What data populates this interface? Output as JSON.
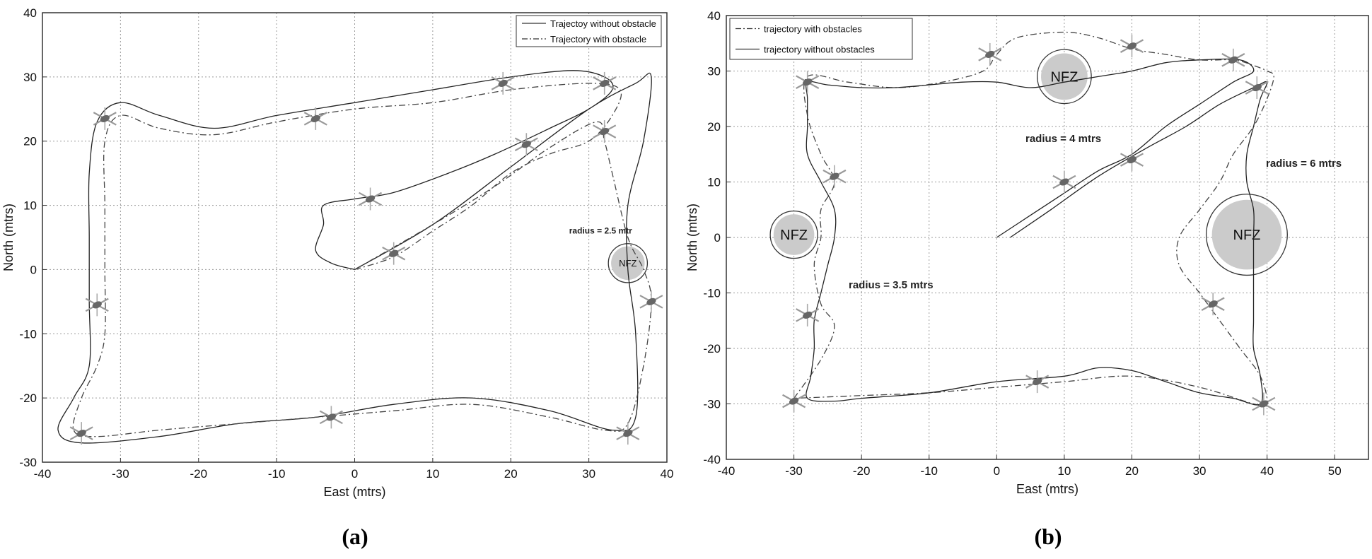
{
  "chart_data": [
    {
      "type": "line",
      "panel_label": "(a)",
      "xlabel": "East (mtrs)",
      "ylabel": "North (mtrs)",
      "xlim": [
        -40,
        40
      ],
      "ylim": [
        -30,
        40
      ],
      "xticks": [
        -40,
        -30,
        -20,
        -10,
        0,
        10,
        20,
        30,
        40
      ],
      "yticks": [
        -30,
        -20,
        -10,
        0,
        10,
        20,
        30,
        40
      ],
      "grid": true,
      "legend_position": "top-right",
      "series": [
        {
          "name": "Trajectoy without obstacle",
          "style": "solid",
          "points": [
            [
              0,
              0
            ],
            [
              -3,
              1
            ],
            [
              -5,
              3
            ],
            [
              -4,
              7
            ],
            [
              -4,
              10
            ],
            [
              0,
              11
            ],
            [
              5,
              12
            ],
            [
              12,
              15
            ],
            [
              18,
              18
            ],
            [
              25,
              22
            ],
            [
              30,
              25
            ],
            [
              33,
              28
            ],
            [
              32,
              30
            ],
            [
              28,
              31
            ],
            [
              20,
              30
            ],
            [
              10,
              28
            ],
            [
              0,
              26
            ],
            [
              -10,
              24
            ],
            [
              -18,
              22
            ],
            [
              -25,
              24
            ],
            [
              -30,
              26
            ],
            [
              -33,
              23
            ],
            [
              -34,
              15
            ],
            [
              -34,
              5
            ],
            [
              -34,
              -5
            ],
            [
              -34,
              -15
            ],
            [
              -36,
              -20
            ],
            [
              -38,
              -25
            ],
            [
              -35,
              -27
            ],
            [
              -25,
              -26
            ],
            [
              -15,
              -24
            ],
            [
              -5,
              -23
            ],
            [
              5,
              -21
            ],
            [
              15,
              -20
            ],
            [
              25,
              -22
            ],
            [
              33,
              -25
            ],
            [
              36,
              -23
            ],
            [
              36,
              -10
            ],
            [
              35,
              0
            ],
            [
              35,
              10
            ],
            [
              37,
              20
            ],
            [
              38,
              30
            ],
            [
              36,
              29
            ],
            [
              30,
              25
            ],
            [
              20,
              16
            ],
            [
              10,
              7
            ],
            [
              0,
              0
            ]
          ]
        },
        {
          "name": "Trajectory with obstacle",
          "style": "dashdot",
          "points": [
            [
              0,
              0
            ],
            [
              5,
              2
            ],
            [
              10,
              6
            ],
            [
              15,
              10
            ],
            [
              20,
              15
            ],
            [
              25,
              18
            ],
            [
              30,
              20
            ],
            [
              33,
              24
            ],
            [
              34,
              28
            ],
            [
              30,
              29
            ],
            [
              20,
              28
            ],
            [
              10,
              26
            ],
            [
              0,
              25
            ],
            [
              -10,
              23
            ],
            [
              -18,
              21
            ],
            [
              -25,
              22
            ],
            [
              -30,
              24
            ],
            [
              -32,
              20
            ],
            [
              -32,
              10
            ],
            [
              -32,
              0
            ],
            [
              -32,
              -10
            ],
            [
              -33,
              -15
            ],
            [
              -35,
              -20
            ],
            [
              -36,
              -25
            ],
            [
              -33,
              -26
            ],
            [
              -25,
              -25
            ],
            [
              -15,
              -24
            ],
            [
              -5,
              -23
            ],
            [
              5,
              -22
            ],
            [
              15,
              -21
            ],
            [
              25,
              -23
            ],
            [
              32,
              -25
            ],
            [
              35,
              -24
            ],
            [
              37,
              -15
            ],
            [
              38,
              -5
            ],
            [
              37,
              0
            ],
            [
              35,
              5
            ],
            [
              33,
              15
            ],
            [
              32,
              20
            ],
            [
              31,
              23
            ],
            [
              25,
              19
            ],
            [
              18,
              13
            ],
            [
              10,
              7
            ],
            [
              0,
              0
            ]
          ]
        }
      ],
      "obstacles": [
        {
          "label": "NFZ",
          "center": [
            35,
            1
          ],
          "radius": 2.5,
          "annotation": "radius = 2.5 mtr"
        }
      ],
      "helicopter_markers": [
        [
          -32,
          23.5
        ],
        [
          -5,
          23.5
        ],
        [
          19,
          29
        ],
        [
          32,
          29
        ],
        [
          22,
          19.5
        ],
        [
          32,
          21.5
        ],
        [
          2,
          11
        ],
        [
          5,
          2.5
        ],
        [
          -33,
          -5.5
        ],
        [
          38,
          -5
        ],
        [
          -3,
          -23
        ],
        [
          -35,
          -25.5
        ],
        [
          35,
          -25.5
        ]
      ]
    },
    {
      "type": "line",
      "panel_label": "(b)",
      "xlabel": "East (mtrs)",
      "ylabel": "North (mtrs)",
      "xlim": [
        -40,
        55
      ],
      "ylim": [
        -40,
        40
      ],
      "xticks": [
        -40,
        -30,
        -20,
        -10,
        0,
        10,
        20,
        30,
        40,
        50
      ],
      "yticks": [
        -40,
        -30,
        -20,
        -10,
        0,
        10,
        20,
        30,
        40
      ],
      "grid": true,
      "legend_position": "top-left",
      "series": [
        {
          "name": "trajectory with obstacles",
          "style": "dashdot",
          "points": [
            [
              -30,
              -29
            ],
            [
              -26,
              -22
            ],
            [
              -24,
              -16
            ],
            [
              -26,
              -12
            ],
            [
              -27,
              -5
            ],
            [
              -26,
              0
            ],
            [
              -26,
              5
            ],
            [
              -24,
              10
            ],
            [
              -26,
              15
            ],
            [
              -28,
              22
            ],
            [
              -28,
              29
            ],
            [
              -22,
              28
            ],
            [
              -15,
              27
            ],
            [
              -8,
              28
            ],
            [
              -2,
              30
            ],
            [
              0,
              33
            ],
            [
              3,
              36
            ],
            [
              10,
              37
            ],
            [
              15,
              36
            ],
            [
              20,
              34
            ],
            [
              25,
              33
            ],
            [
              30,
              32
            ],
            [
              35,
              32
            ],
            [
              38,
              31
            ],
            [
              40,
              30
            ],
            [
              41,
              29
            ],
            [
              40,
              25
            ],
            [
              38,
              20
            ],
            [
              35,
              15
            ],
            [
              33,
              10
            ],
            [
              30,
              5
            ],
            [
              27,
              0
            ],
            [
              27,
              -5
            ],
            [
              30,
              -10
            ],
            [
              33,
              -15
            ],
            [
              36,
              -20
            ],
            [
              39,
              -25
            ],
            [
              40,
              -30
            ],
            [
              38,
              -30
            ],
            [
              30,
              -27
            ],
            [
              20,
              -25
            ],
            [
              10,
              -26
            ],
            [
              0,
              -27
            ],
            [
              -10,
              -28
            ],
            [
              -20,
              -28.5
            ],
            [
              -30,
              -29
            ]
          ]
        },
        {
          "name": "trajectory without obstacles",
          "style": "solid",
          "points": [
            [
              0,
              0
            ],
            [
              5,
              4
            ],
            [
              10,
              8
            ],
            [
              15,
              12
            ],
            [
              20,
              15
            ],
            [
              25,
              20
            ],
            [
              30,
              24
            ],
            [
              35,
              28
            ],
            [
              38,
              30
            ],
            [
              36,
              32
            ],
            [
              30,
              32
            ],
            [
              25,
              31.5
            ],
            [
              20,
              30
            ],
            [
              15,
              29
            ],
            [
              10,
              28
            ],
            [
              5,
              27
            ],
            [
              0,
              28
            ],
            [
              -5,
              28
            ],
            [
              -10,
              27.5
            ],
            [
              -15,
              27
            ],
            [
              -20,
              27
            ],
            [
              -25,
              27.5
            ],
            [
              -28,
              28
            ],
            [
              -28,
              25
            ],
            [
              -28,
              20
            ],
            [
              -28,
              15
            ],
            [
              -26,
              10
            ],
            [
              -24,
              5
            ],
            [
              -24,
              0
            ],
            [
              -25,
              -5
            ],
            [
              -26,
              -10
            ],
            [
              -27,
              -15
            ],
            [
              -27,
              -20
            ],
            [
              -27.5,
              -25
            ],
            [
              -28,
              -29
            ],
            [
              -24,
              -29.5
            ],
            [
              -20,
              -29
            ],
            [
              -10,
              -28
            ],
            [
              0,
              -26
            ],
            [
              10,
              -25
            ],
            [
              15,
              -23.5
            ],
            [
              20,
              -24
            ],
            [
              25,
              -26
            ],
            [
              30,
              -28
            ],
            [
              35,
              -29
            ],
            [
              39,
              -30
            ],
            [
              39,
              -25
            ],
            [
              38,
              -20
            ],
            [
              38,
              -15
            ],
            [
              38,
              -10
            ],
            [
              38,
              -5
            ],
            [
              38,
              0
            ],
            [
              38,
              5
            ],
            [
              37,
              10
            ],
            [
              37,
              15
            ],
            [
              38,
              20
            ],
            [
              39,
              25
            ],
            [
              40,
              28
            ],
            [
              38,
              27
            ],
            [
              33,
              24
            ],
            [
              28,
              20
            ],
            [
              22,
              16
            ],
            [
              15,
              11
            ],
            [
              8,
              5
            ],
            [
              2,
              0
            ]
          ]
        }
      ],
      "obstacles": [
        {
          "label": "NFZ",
          "center": [
            -30,
            0.5
          ],
          "radius": 3.5,
          "annotation": "radius = 3.5 mtrs"
        },
        {
          "label": "NFZ",
          "center": [
            10,
            29
          ],
          "radius": 4,
          "annotation": "radius = 4 mtrs"
        },
        {
          "label": "NFZ",
          "center": [
            37,
            0.5
          ],
          "radius": 6,
          "annotation": "radius = 6 mtrs"
        }
      ],
      "helicopter_markers": [
        [
          -28,
          28
        ],
        [
          -1,
          33
        ],
        [
          20,
          34.5
        ],
        [
          35,
          32
        ],
        [
          38.5,
          27
        ],
        [
          -24,
          11
        ],
        [
          10,
          10
        ],
        [
          20,
          14
        ],
        [
          -28,
          -14
        ],
        [
          32,
          -12
        ],
        [
          -30,
          -29.5
        ],
        [
          6,
          -26
        ],
        [
          39.5,
          -30
        ]
      ]
    }
  ]
}
